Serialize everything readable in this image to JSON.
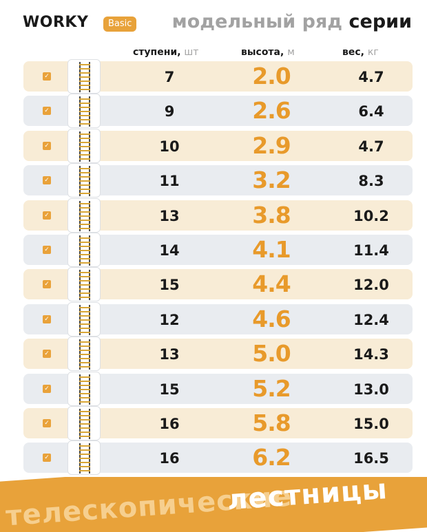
{
  "header": {
    "brand": "WORKY",
    "badge": "Basic",
    "title_light": "модельный ряд",
    "title_dark": "серии"
  },
  "columns": {
    "steps_label": "ступени,",
    "steps_unit": "шт",
    "height_label": "высота,",
    "height_unit": "м",
    "weight_label": "вес,",
    "weight_unit": "кг"
  },
  "rows": [
    {
      "steps": "7",
      "height": "2.0",
      "weight": "4.7"
    },
    {
      "steps": "9",
      "height": "2.6",
      "weight": "6.4"
    },
    {
      "steps": "10",
      "height": "2.9",
      "weight": "4.7"
    },
    {
      "steps": "11",
      "height": "3.2",
      "weight": "8.3"
    },
    {
      "steps": "13",
      "height": "3.8",
      "weight": "10.2"
    },
    {
      "steps": "14",
      "height": "4.1",
      "weight": "11.4"
    },
    {
      "steps": "15",
      "height": "4.4",
      "weight": "12.0"
    },
    {
      "steps": "12",
      "height": "4.6",
      "weight": "12.4"
    },
    {
      "steps": "13",
      "height": "5.0",
      "weight": "14.3"
    },
    {
      "steps": "15",
      "height": "5.2",
      "weight": "13.0"
    },
    {
      "steps": "16",
      "height": "5.8",
      "weight": "15.0"
    },
    {
      "steps": "16",
      "height": "6.2",
      "weight": "16.5"
    }
  ],
  "footer": {
    "line1": "телескопические",
    "line2": "лестницы"
  },
  "colors": {
    "accent": "#e89a2b",
    "row_warm": "#f8ecd6",
    "row_cool": "#e9ecf0",
    "muted": "#a2a2a2"
  },
  "icons": {
    "check": "checkbox-icon",
    "ladder": "ladder-icon"
  }
}
